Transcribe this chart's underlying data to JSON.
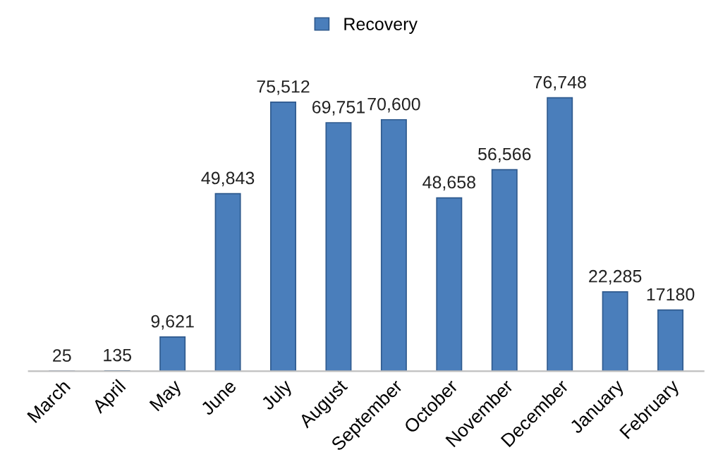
{
  "chart_data": {
    "type": "bar",
    "categories": [
      "March",
      "April",
      "May",
      "June",
      "July",
      "August",
      "September",
      "October",
      "November",
      "December",
      "January",
      "February"
    ],
    "series": [
      {
        "name": "Recovery",
        "color": "#4a7ebb",
        "values": [
          25,
          135,
          9621,
          49843,
          75512,
          69751,
          70600,
          48658,
          56566,
          76748,
          22285,
          17180
        ],
        "value_labels": [
          "25",
          "135",
          "9,621",
          "49,843",
          "75,512",
          "69,751",
          "70,600",
          "48,658",
          "56,566",
          "76,748",
          "22,285",
          "17180"
        ]
      }
    ],
    "legend": "top",
    "grid": false
  }
}
